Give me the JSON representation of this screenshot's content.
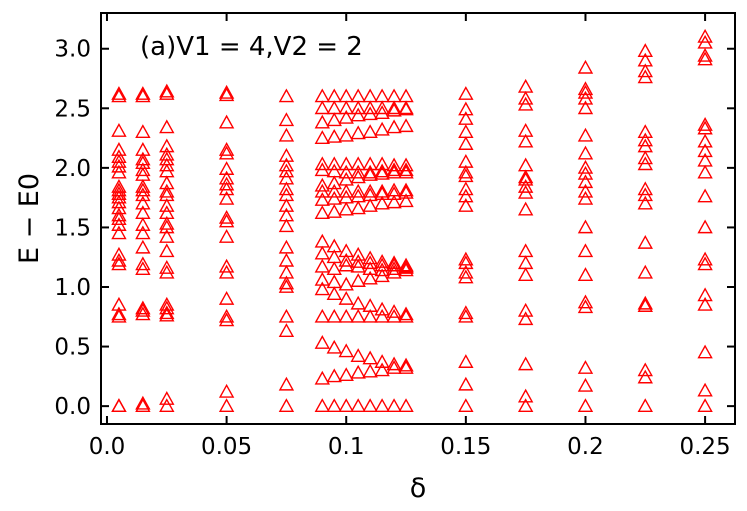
{
  "chart_data": {
    "type": "scatter",
    "xlabel": "δ",
    "ylabel": "E − E0",
    "annotation": "(a)V1 = 4,V2 = 2",
    "xlim": [
      -0.0025,
      0.2625
    ],
    "ylim": [
      -0.15,
      3.3
    ],
    "x_ticks": [
      "0.0",
      "0.05",
      "0.1",
      "0.15",
      "0.2",
      "0.25"
    ],
    "y_ticks": [
      "0.0",
      "0.5",
      "1.0",
      "1.5",
      "2.0",
      "2.5",
      "3.0"
    ],
    "grid": false,
    "marker": "triangle-open",
    "marker_color": "#ff0000",
    "series": [
      {
        "x": 0.005,
        "values": [
          0,
          0,
          0.75,
          0.77,
          0.85,
          1.19,
          1.22,
          1.27,
          1.45,
          1.52,
          1.57,
          1.6,
          1.66,
          1.71,
          1.75,
          1.78,
          1.81,
          1.84,
          1.96,
          2.01,
          2.05,
          2.09,
          2.15,
          2.31,
          2.6,
          2.62
        ]
      },
      {
        "x": 0.015,
        "values": [
          0,
          0.02,
          0.77,
          0.8,
          0.82,
          1.15,
          1.19,
          1.33,
          1.45,
          1.52,
          1.62,
          1.7,
          1.77,
          1.81,
          1.84,
          1.94,
          1.98,
          2.04,
          2.07,
          2.15,
          2.3,
          2.6,
          2.62
        ]
      },
      {
        "x": 0.025,
        "values": [
          0,
          0.06,
          0.76,
          0.78,
          0.82,
          0.85,
          1.12,
          1.16,
          1.3,
          1.42,
          1.5,
          1.53,
          1.62,
          1.68,
          1.77,
          1.8,
          1.87,
          1.97,
          2.02,
          2.07,
          2.11,
          2.18,
          2.34,
          2.62,
          2.64
        ]
      },
      {
        "x": 0.05,
        "values": [
          0.12,
          0,
          0.72,
          0.75,
          0.9,
          1.12,
          1.17,
          1.42,
          1.55,
          1.58,
          1.74,
          1.82,
          1.86,
          1.91,
          1.99,
          2.12,
          2.15,
          2.38,
          2.61,
          2.63
        ]
      },
      {
        "x": 0.075,
        "values": [
          0,
          0.18,
          0.63,
          0.75,
          1.0,
          1.03,
          1.12,
          1.22,
          1.33,
          1.51,
          1.6,
          1.68,
          1.77,
          1.82,
          1.91,
          1.97,
          2.02,
          2.1,
          2.27,
          2.4,
          2.6
        ]
      },
      {
        "x": 0.09,
        "values": [
          0,
          0.23,
          0.53,
          0.75,
          0.98,
          1.06,
          1.17,
          1.28,
          1.38,
          1.62,
          1.73,
          1.8,
          1.85,
          1.98,
          2.03,
          2.25,
          2.38,
          2.5,
          2.6
        ]
      },
      {
        "x": 0.095,
        "values": [
          0,
          0.25,
          0.49,
          0.75,
          0.94,
          1.04,
          1.15,
          1.25,
          1.34,
          1.63,
          1.74,
          1.8,
          1.87,
          1.97,
          2.03,
          2.26,
          2.4,
          2.5,
          2.6
        ]
      },
      {
        "x": 0.1,
        "values": [
          0,
          0.26,
          0.46,
          0.75,
          0.9,
          1.02,
          1.18,
          1.22,
          1.3,
          1.65,
          1.75,
          1.8,
          1.9,
          1.96,
          2.03,
          2.27,
          2.42,
          2.5,
          2.6
        ]
      },
      {
        "x": 0.105,
        "values": [
          0,
          0.28,
          0.42,
          0.75,
          0.86,
          1.05,
          1.17,
          1.21,
          1.27,
          1.66,
          1.76,
          1.8,
          1.92,
          1.96,
          2.03,
          2.29,
          2.44,
          2.5,
          2.6
        ]
      },
      {
        "x": 0.11,
        "values": [
          0,
          0.29,
          0.4,
          0.75,
          0.84,
          1.07,
          1.15,
          1.2,
          1.24,
          1.68,
          1.77,
          1.8,
          1.94,
          1.96,
          2.03,
          2.3,
          2.45,
          2.5,
          2.6
        ]
      },
      {
        "x": 0.115,
        "values": [
          0,
          0.3,
          0.37,
          0.75,
          0.81,
          1.09,
          1.14,
          1.18,
          1.21,
          1.7,
          1.78,
          1.8,
          1.95,
          1.97,
          2.03,
          2.32,
          2.46,
          2.5,
          2.6
        ]
      },
      {
        "x": 0.12,
        "values": [
          0,
          0.32,
          0.35,
          0.75,
          0.79,
          1.12,
          1.15,
          1.18,
          1.2,
          1.71,
          1.78,
          1.81,
          1.96,
          1.98,
          2.02,
          2.34,
          2.48,
          2.5,
          2.6
        ]
      },
      {
        "x": 0.125,
        "values": [
          0,
          0.32,
          0.34,
          0.75,
          0.77,
          1.14,
          1.16,
          1.17,
          1.18,
          1.72,
          1.79,
          1.81,
          1.96,
          1.98,
          2.02,
          2.35,
          2.49,
          2.5,
          2.6
        ]
      },
      {
        "x": 0.15,
        "values": [
          0,
          0.18,
          0.37,
          0.75,
          0.78,
          1.08,
          1.12,
          1.2,
          1.23,
          1.68,
          1.76,
          1.82,
          1.93,
          1.96,
          2.05,
          2.2,
          2.3,
          2.41,
          2.49,
          2.62
        ]
      },
      {
        "x": 0.175,
        "values": [
          0,
          0.08,
          0.35,
          0.73,
          0.8,
          1.1,
          1.2,
          1.3,
          1.65,
          1.79,
          1.84,
          1.9,
          1.92,
          2.02,
          2.22,
          2.31,
          2.53,
          2.58,
          2.68
        ]
      },
      {
        "x": 0.2,
        "values": [
          0,
          0.17,
          0.32,
          0.83,
          0.87,
          1.1,
          1.3,
          1.5,
          1.74,
          1.8,
          1.88,
          1.95,
          2.0,
          2.12,
          2.27,
          2.5,
          2.58,
          2.63,
          2.66,
          2.84
        ]
      },
      {
        "x": 0.225,
        "values": [
          0,
          0.24,
          0.3,
          0.84,
          0.86,
          1.12,
          1.37,
          1.7,
          1.77,
          1.82,
          2.03,
          2.08,
          2.18,
          2.23,
          2.3,
          2.76,
          2.81,
          2.9,
          2.98
        ]
      },
      {
        "x": 0.25,
        "values": [
          0,
          0.13,
          0.45,
          0.85,
          0.93,
          1.19,
          1.23,
          1.5,
          1.76,
          1.96,
          2.06,
          2.14,
          2.22,
          2.33,
          2.36,
          2.91,
          2.94,
          3.05,
          3.1
        ]
      }
    ]
  }
}
